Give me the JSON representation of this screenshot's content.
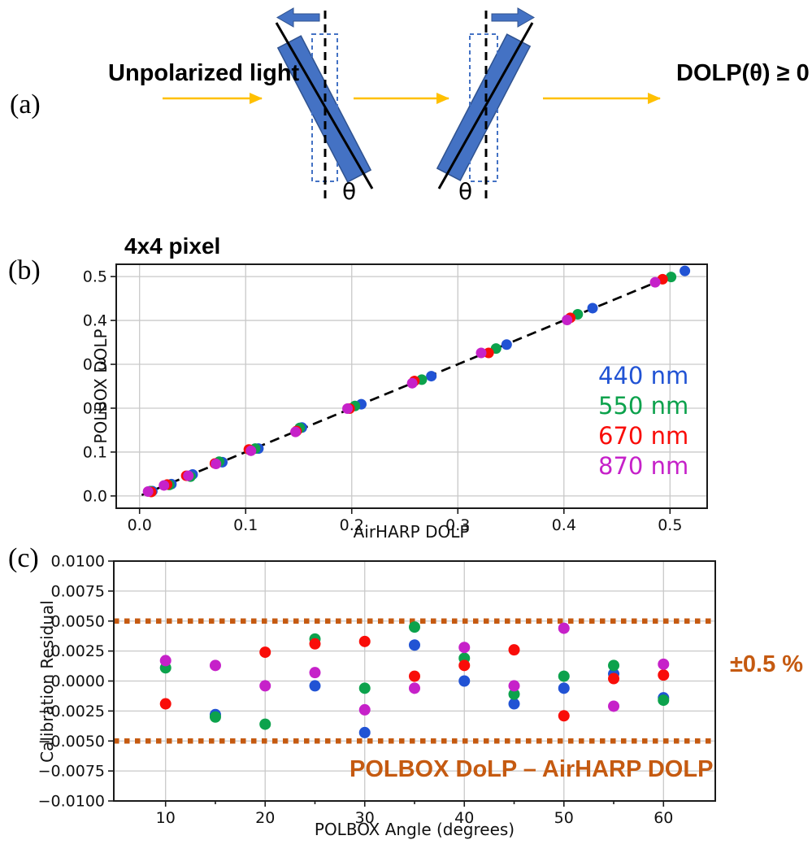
{
  "colors": {
    "accent_orange": "#C55A11",
    "polarizer_blue": "#4472C4",
    "polarizer_border": "#2F528F",
    "light_arrow_yellow": "#FFC000",
    "series_blue": "#2153D4",
    "series_green": "#0CA24C",
    "series_red": "#F90D09",
    "series_magenta": "#C621C9"
  },
  "panel_a": {
    "label": "(a)",
    "unpolarized_label": "Unpolarized light",
    "output_label": "DOLP(θ) ≥ 0",
    "theta_left": "θ",
    "theta_right": "θ"
  },
  "panel_b": {
    "label": "(b)",
    "title": "4x4 pixel",
    "xlabel": "AirHARP DOLP",
    "ylabel": "POLBOX DOLP",
    "legend": [
      {
        "label": "440 nm",
        "color": "#2153D4"
      },
      {
        "label": "550 nm",
        "color": "#0CA24C"
      },
      {
        "label": "670 nm",
        "color": "#F90D09"
      },
      {
        "label": "870 nm",
        "color": "#C621C9"
      }
    ]
  },
  "panel_c": {
    "label": "(c)",
    "xlabel": "POLBOX Angle (degrees)",
    "ylabel": "Calibration Residual",
    "annotation": "POLBOX DoLP – AirHARP DOLP",
    "band_label": "±0.5 %"
  },
  "chart_data": [
    {
      "id": "b",
      "type": "scatter",
      "title": "4x4 pixel",
      "xlabel": "AirHARP DOLP",
      "ylabel": "POLBOX DOLP",
      "xlim": [
        -0.022,
        0.535
      ],
      "ylim": [
        -0.028,
        0.528
      ],
      "grid": true,
      "legend_position": "right-inside",
      "xticks": [
        0.0,
        0.1,
        0.2,
        0.3,
        0.4,
        0.5
      ],
      "xtick_labels": [
        "0.0",
        "0.1",
        "0.2",
        "0.3",
        "0.4",
        "0.5"
      ],
      "yticks": [
        0.0,
        0.1,
        0.2,
        0.3,
        0.4,
        0.5
      ],
      "ytick_labels": [
        "0.0",
        "0.1",
        "0.2",
        "0.3",
        "0.4",
        "0.5"
      ],
      "identity_line": {
        "from": [
          0.002,
          0.002
        ],
        "to": [
          0.492,
          0.492
        ],
        "style": "dashed",
        "color": "#000000"
      },
      "series": [
        {
          "name": "440 nm",
          "color": "#2153D4",
          "points": [
            [
              0.012,
              0.011
            ],
            [
              0.03,
              0.027
            ],
            [
              0.05,
              0.049
            ],
            [
              0.078,
              0.077
            ],
            [
              0.112,
              0.108
            ],
            [
              0.153,
              0.156
            ],
            [
              0.209,
              0.209
            ],
            [
              0.275,
              0.273
            ],
            [
              0.346,
              0.345
            ],
            [
              0.427,
              0.428
            ],
            [
              0.514,
              0.513
            ]
          ]
        },
        {
          "name": "550 nm",
          "color": "#0CA24C",
          "points": [
            [
              0.01,
              0.011
            ],
            [
              0.028,
              0.025
            ],
            [
              0.048,
              0.044
            ],
            [
              0.075,
              0.078
            ],
            [
              0.109,
              0.108
            ],
            [
              0.151,
              0.155
            ],
            [
              0.203,
              0.205
            ],
            [
              0.266,
              0.265
            ],
            [
              0.336,
              0.336
            ],
            [
              0.413,
              0.414
            ],
            [
              0.501,
              0.499
            ]
          ]
        },
        {
          "name": "670 nm",
          "color": "#F90D09",
          "points": [
            [
              0.011,
              0.009
            ],
            [
              0.026,
              0.026
            ],
            [
              0.044,
              0.046
            ],
            [
              0.071,
              0.074
            ],
            [
              0.103,
              0.106
            ],
            [
              0.148,
              0.148
            ],
            [
              0.198,
              0.199
            ],
            [
              0.259,
              0.262
            ],
            [
              0.329,
              0.326
            ],
            [
              0.406,
              0.406
            ],
            [
              0.493,
              0.494
            ]
          ]
        },
        {
          "name": "870 nm",
          "color": "#C621C9",
          "points": [
            [
              0.008,
              0.01
            ],
            [
              0.023,
              0.024
            ],
            [
              0.046,
              0.046
            ],
            [
              0.072,
              0.073
            ],
            [
              0.105,
              0.103
            ],
            [
              0.147,
              0.146
            ],
            [
              0.196,
              0.199
            ],
            [
              0.257,
              0.257
            ],
            [
              0.322,
              0.326
            ],
            [
              0.403,
              0.401
            ],
            [
              0.486,
              0.487
            ]
          ]
        }
      ]
    },
    {
      "id": "c",
      "type": "scatter",
      "xlabel": "POLBOX Angle (degrees)",
      "ylabel": "Calibration Residual",
      "xlim": [
        4.8,
        65.2
      ],
      "ylim": [
        -0.01,
        0.01
      ],
      "grid": true,
      "xticks": [
        10,
        20,
        30,
        40,
        50,
        60
      ],
      "xtick_labels": [
        "10",
        "20",
        "30",
        "40",
        "50",
        "60"
      ],
      "minor_xticks": [
        15,
        25,
        35,
        45,
        55
      ],
      "yticks": [
        0.01,
        0.0075,
        0.005,
        0.0025,
        0.0,
        -0.0025,
        -0.005,
        -0.0075,
        -0.01
      ],
      "ytick_labels": [
        "0.0100",
        "0.0075",
        "0.0050",
        "0.0025",
        "0.0000",
        "−0.0025",
        "−0.0050",
        "−0.0075",
        "−0.0100"
      ],
      "bands": {
        "values": [
          0.005,
          -0.005
        ],
        "color": "#C55A11",
        "style": "dotted",
        "label": "±0.5 %"
      },
      "annotation": "POLBOX DoLP – AirHARP DOLP",
      "series": [
        {
          "name": "440 nm",
          "color": "#2153D4",
          "points": [
            [
              15,
              -0.0028
            ],
            [
              25,
              -0.0004
            ],
            [
              30,
              -0.0043
            ],
            [
              35,
              0.003
            ],
            [
              40,
              0.0
            ],
            [
              45,
              -0.0019
            ],
            [
              50,
              -0.0006
            ],
            [
              55,
              0.0006
            ],
            [
              60,
              -0.0014
            ]
          ]
        },
        {
          "name": "550 nm",
          "color": "#0CA24C",
          "points": [
            [
              10,
              0.0011
            ],
            [
              15,
              -0.003
            ],
            [
              20,
              -0.0036
            ],
            [
              25,
              0.0035
            ],
            [
              30,
              -0.0006
            ],
            [
              35,
              0.0045
            ],
            [
              40,
              0.0019
            ],
            [
              45,
              -0.0011
            ],
            [
              50,
              0.0004
            ],
            [
              55,
              0.0013
            ],
            [
              60,
              -0.0016
            ]
          ]
        },
        {
          "name": "670 nm",
          "color": "#F90D09",
          "points": [
            [
              10,
              -0.0019
            ],
            [
              20,
              0.0024
            ],
            [
              25,
              0.0031
            ],
            [
              30,
              0.0033
            ],
            [
              35,
              0.0004
            ],
            [
              40,
              0.0013
            ],
            [
              45,
              0.0026
            ],
            [
              50,
              -0.0029
            ],
            [
              55,
              0.0002
            ],
            [
              60,
              0.0005
            ]
          ]
        },
        {
          "name": "870 nm",
          "color": "#C621C9",
          "points": [
            [
              10,
              0.0017
            ],
            [
              15,
              0.0013
            ],
            [
              20,
              -0.0004
            ],
            [
              25,
              0.0007
            ],
            [
              30,
              -0.0024
            ],
            [
              35,
              -0.0006
            ],
            [
              40,
              0.0028
            ],
            [
              45,
              -0.0004
            ],
            [
              50,
              0.0044
            ],
            [
              55,
              -0.0021
            ],
            [
              60,
              0.0014
            ]
          ]
        }
      ]
    }
  ]
}
